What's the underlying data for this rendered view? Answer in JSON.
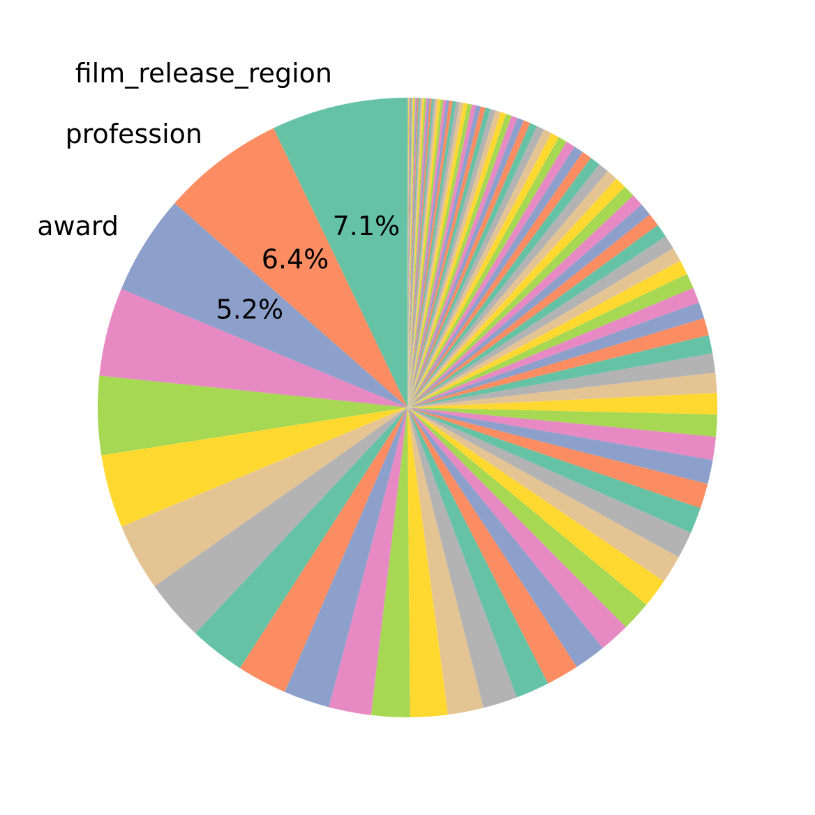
{
  "chart_data": {
    "type": "pie",
    "start": "top",
    "direction": "counterclockwise",
    "palette": [
      "#66c2a5",
      "#fc8d62",
      "#8da0cb",
      "#e78ac3",
      "#a6d854",
      "#ffd92f",
      "#e5c494",
      "#b3b3b3"
    ],
    "named_labels": [
      "film_release_region",
      "profession",
      "award"
    ],
    "percent_labels": [
      "7.1%",
      "6.4%",
      "5.2%"
    ],
    "values": [
      7.1,
      6.4,
      5.2,
      4.6,
      4.1,
      3.8,
      3.5,
      3.2,
      2.9,
      2.6,
      2.4,
      2.2,
      2.0,
      1.95,
      1.85,
      1.8,
      1.75,
      1.7,
      1.65,
      1.6,
      1.55,
      1.5,
      1.45,
      1.4,
      1.35,
      1.3,
      1.25,
      1.2,
      1.15,
      1.1,
      1.05,
      1.0,
      0.95,
      0.9,
      0.85,
      0.8,
      0.78,
      0.76,
      0.74,
      0.72,
      0.7,
      0.68,
      0.66,
      0.64,
      0.62,
      0.6,
      0.58,
      0.56,
      0.54,
      0.52,
      0.5,
      0.48,
      0.46,
      0.44,
      0.42,
      0.4,
      0.38,
      0.36,
      0.34,
      0.32,
      0.3,
      0.29,
      0.28,
      0.27,
      0.26,
      0.25,
      0.24,
      0.23,
      0.22,
      0.21,
      0.2,
      0.19,
      0.18,
      0.17,
      0.16,
      0.15,
      0.14,
      0.13,
      0.12,
      0.11,
      0.1,
      0.1,
      0.1,
      0.09,
      0.09,
      0.08,
      0.08,
      0.07,
      0.07,
      0.06,
      0.06,
      0.05,
      0.05,
      0.05,
      0.04,
      0.04,
      0.04,
      0.03,
      0.03,
      0.03,
      0.02,
      0.02,
      0.02,
      0.02
    ]
  }
}
